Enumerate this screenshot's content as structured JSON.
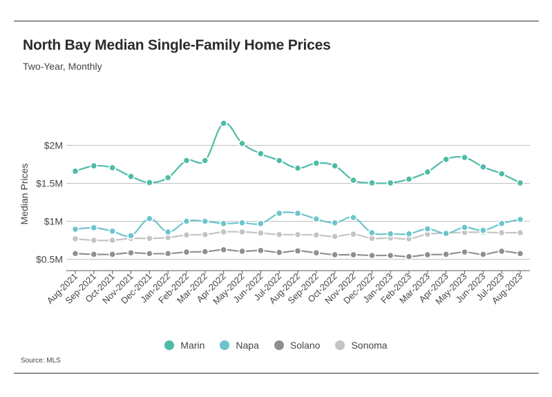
{
  "title": "North Bay Median Single-Family Home Prices",
  "subtitle": "Two-Year, Monthly",
  "source": "Source: MLS",
  "chart_data": {
    "type": "line",
    "title": "North Bay Median Single-Family Home Prices",
    "subtitle": "Two-Year, Monthly",
    "ylabel": "Median Prices",
    "xlabel": "",
    "ylim": [
      350000,
      2550000
    ],
    "yticks": [
      {
        "value": 500000,
        "label": "$0.5M"
      },
      {
        "value": 1000000,
        "label": "$1M"
      },
      {
        "value": 1500000,
        "label": "$1.5M"
      },
      {
        "value": 2000000,
        "label": "$2M"
      }
    ],
    "grid": true,
    "legend": "bottom-center",
    "categories": [
      "Aug-2021",
      "Sep-2021",
      "Oct-2021",
      "Nov-2021",
      "Dec-2021",
      "Jan-2022",
      "Feb-2022",
      "Mar-2022",
      "Apr-2022",
      "May-2022",
      "Jun-2022",
      "Jul-2022",
      "Aug-2022",
      "Sep-2022",
      "Oct-2022",
      "Nov-2022",
      "Dec-2022",
      "Jan-2023",
      "Feb-2023",
      "Mar-2023",
      "Apr-2023",
      "May-2023",
      "Jun-2023",
      "Jul-2023",
      "Aug-2023"
    ],
    "series": [
      {
        "name": "Marin",
        "color": "#4dbba6",
        "values": [
          1660000,
          1730000,
          1705000,
          1590000,
          1510000,
          1575000,
          1800000,
          1800000,
          2290000,
          2025000,
          1890000,
          1800000,
          1700000,
          1765000,
          1730000,
          1540000,
          1505000,
          1505000,
          1555000,
          1650000,
          1815000,
          1840000,
          1715000,
          1625000,
          1505000
        ]
      },
      {
        "name": "Napa",
        "color": "#6cc5cc",
        "values": [
          895000,
          915000,
          870000,
          810000,
          1035000,
          860000,
          1000000,
          1000000,
          970000,
          980000,
          970000,
          1105000,
          1105000,
          1030000,
          980000,
          1050000,
          850000,
          835000,
          835000,
          900000,
          840000,
          920000,
          880000,
          970000,
          1025000
        ]
      },
      {
        "name": "Solano",
        "color": "#8f8f8f",
        "values": [
          575000,
          565000,
          565000,
          585000,
          575000,
          575000,
          595000,
          600000,
          625000,
          605000,
          615000,
          590000,
          610000,
          585000,
          560000,
          560000,
          550000,
          550000,
          535000,
          560000,
          565000,
          595000,
          565000,
          605000,
          575000
        ]
      },
      {
        "name": "Sonoma",
        "color": "#c4c4c4",
        "values": [
          770000,
          750000,
          750000,
          775000,
          775000,
          785000,
          820000,
          825000,
          860000,
          860000,
          845000,
          825000,
          825000,
          820000,
          800000,
          830000,
          775000,
          780000,
          770000,
          830000,
          845000,
          855000,
          855000,
          850000,
          850000
        ]
      }
    ]
  }
}
